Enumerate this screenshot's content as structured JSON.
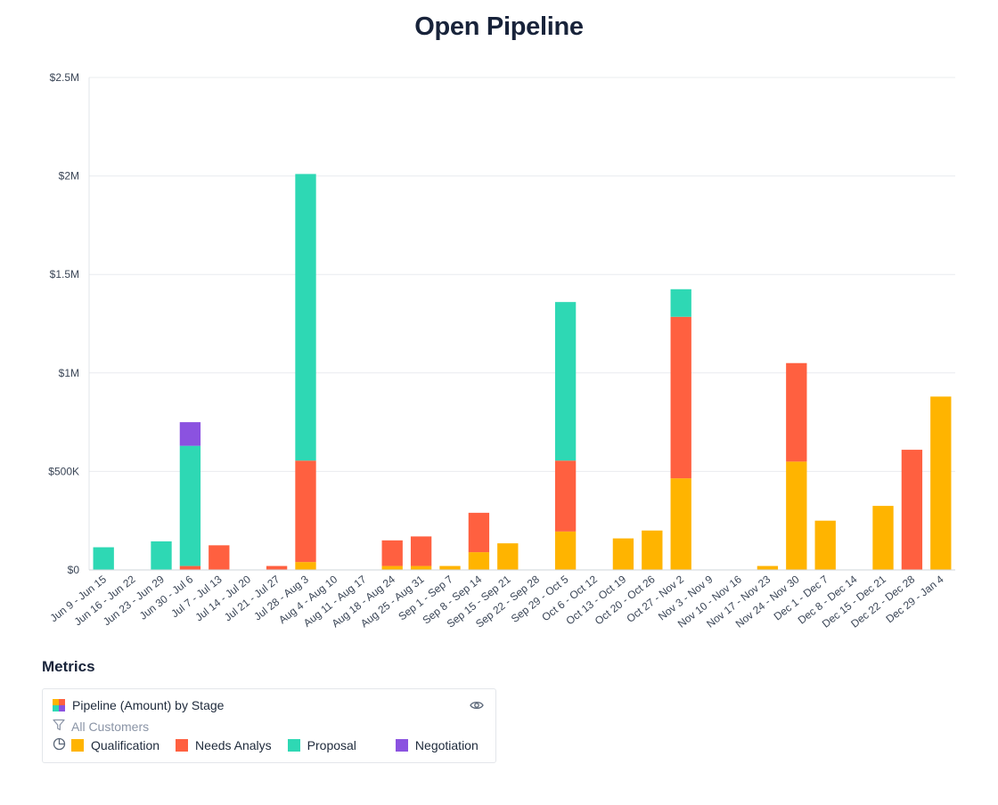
{
  "title": "Open Pipeline",
  "metrics_heading": "Metrics",
  "legend": {
    "metric_name": "Pipeline (Amount) by Stage",
    "filter_label": "All Customers",
    "items": [
      {
        "label": "Qualification",
        "color": "#ffb400"
      },
      {
        "label": "Needs Analys",
        "color": "#ff6040"
      },
      {
        "label": "Proposal",
        "color": "#2ed8b4"
      },
      {
        "label": "Negotiation",
        "color": "#8b52e0"
      }
    ],
    "icons": [
      "stacked-grid-icon",
      "eye-icon",
      "funnel-icon",
      "pie-chart-icon"
    ]
  },
  "chart_data": {
    "type": "bar",
    "stacked": true,
    "title": "Open Pipeline",
    "ylim": [
      0,
      2500000
    ],
    "yticks": [
      {
        "value": 0,
        "label": "$0"
      },
      {
        "value": 500000,
        "label": "$500K"
      },
      {
        "value": 1000000,
        "label": "$1M"
      },
      {
        "value": 1500000,
        "label": "$1.5M"
      },
      {
        "value": 2000000,
        "label": "$2M"
      },
      {
        "value": 2500000,
        "label": "$2.5M"
      }
    ],
    "grid": true,
    "categories": [
      "Jun 9 - Jun 15",
      "Jun 16 - Jun 22",
      "Jun 23 - Jun 29",
      "Jun 30 - Jul 6",
      "Jul 7 - Jul 13",
      "Jul 14 - Jul 20",
      "Jul 21 - Jul 27",
      "Jul 28 - Aug 3",
      "Aug 4 - Aug 10",
      "Aug 11 - Aug 17",
      "Aug 18 - Aug 24",
      "Aug 25 - Aug 31",
      "Sep 1 - Sep 7",
      "Sep 8 - Sep 14",
      "Sep 15 - Sep 21",
      "Sep 22 - Sep 28",
      "Sep 29 - Oct 5",
      "Oct 6 - Oct 12",
      "Oct 13 - Oct 19",
      "Oct 20 - Oct 26",
      "Oct 27 - Nov 2",
      "Nov 3 - Nov 9",
      "Nov 10 - Nov 16",
      "Nov 17 - Nov 23",
      "Nov 24 - Nov 30",
      "Dec 1 - Dec 7",
      "Dec 8 - Dec 14",
      "Dec 15 - Dec 21",
      "Dec 22 - Dec 28",
      "Dec 29 - Jan 4"
    ],
    "series": [
      {
        "name": "Qualification",
        "color": "#ffb400",
        "values": [
          0,
          0,
          0,
          0,
          0,
          0,
          0,
          40000,
          0,
          0,
          20000,
          20000,
          20000,
          90000,
          135000,
          0,
          195000,
          0,
          160000,
          200000,
          465000,
          0,
          0,
          20000,
          550000,
          250000,
          0,
          325000,
          0,
          880000
        ]
      },
      {
        "name": "Needs Analys",
        "color": "#ff6040",
        "values": [
          0,
          0,
          0,
          20000,
          125000,
          0,
          20000,
          515000,
          0,
          0,
          130000,
          150000,
          0,
          200000,
          0,
          0,
          360000,
          0,
          0,
          0,
          820000,
          0,
          0,
          0,
          500000,
          0,
          0,
          0,
          610000,
          0
        ]
      },
      {
        "name": "Proposal",
        "color": "#2ed8b4",
        "values": [
          115000,
          0,
          145000,
          610000,
          0,
          0,
          0,
          1455000,
          0,
          0,
          0,
          0,
          0,
          0,
          0,
          0,
          805000,
          0,
          0,
          0,
          140000,
          0,
          0,
          0,
          0,
          0,
          0,
          0,
          0,
          0
        ]
      },
      {
        "name": "Negotiation",
        "color": "#8b52e0",
        "values": [
          0,
          0,
          0,
          120000,
          0,
          0,
          0,
          0,
          0,
          0,
          0,
          0,
          0,
          0,
          0,
          0,
          0,
          0,
          0,
          0,
          0,
          0,
          0,
          0,
          0,
          0,
          0,
          0,
          0,
          0
        ]
      }
    ]
  }
}
